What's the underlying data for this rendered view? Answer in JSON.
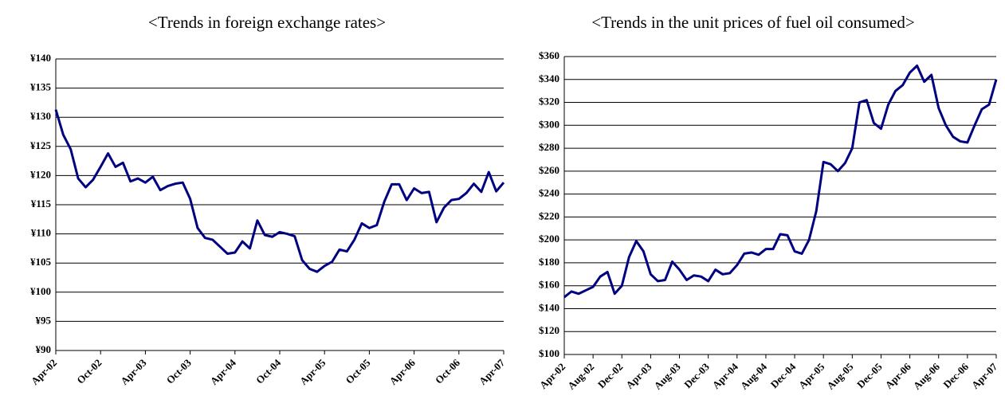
{
  "chart_data": [
    {
      "type": "line",
      "title": "<Trends in foreign exchange rates>",
      "color": "#000080",
      "grid": true,
      "categories": [
        "Apr-02",
        null,
        null,
        null,
        null,
        null,
        "Oct-02",
        null,
        null,
        null,
        null,
        null,
        "Apr-03",
        null,
        null,
        null,
        null,
        null,
        "Oct-03",
        null,
        null,
        null,
        null,
        null,
        "Apr-04",
        null,
        null,
        null,
        null,
        null,
        "Oct-04",
        null,
        null,
        null,
        null,
        null,
        "Apr-05",
        null,
        null,
        null,
        null,
        null,
        "Oct-05",
        null,
        null,
        null,
        null,
        null,
        "Apr-06",
        null,
        null,
        null,
        null,
        null,
        "Oct-06",
        null,
        null,
        null,
        null,
        null,
        "Apr-07"
      ],
      "values": [
        131.3,
        127,
        124.5,
        119.5,
        118,
        119.3,
        121.5,
        123.8,
        121.5,
        122.2,
        119,
        119.5,
        118.8,
        119.8,
        117.5,
        118.2,
        118.6,
        118.8,
        116,
        111,
        109.3,
        109,
        107.8,
        106.6,
        106.8,
        108.7,
        107.5,
        112.3,
        109.8,
        109.5,
        110.3,
        110,
        109.6,
        105.5,
        104,
        103.5,
        104.5,
        105.2,
        107.3,
        107,
        109,
        111.8,
        111,
        111.5,
        115.5,
        118.5,
        118.5,
        115.8,
        117.8,
        117,
        117.2,
        112,
        114.5,
        115.8,
        116,
        117,
        118.6,
        117.2,
        120.6,
        117.3,
        118.8
      ],
      "ylim": [
        90,
        140
      ],
      "yticks": [
        {
          "value": 90,
          "label": "¥90"
        },
        {
          "value": 95,
          "label": "¥95"
        },
        {
          "value": 100,
          "label": "¥100"
        },
        {
          "value": 105,
          "label": "¥105"
        },
        {
          "value": 110,
          "label": "¥110"
        },
        {
          "value": 115,
          "label": "¥115"
        },
        {
          "value": 120,
          "label": "¥120"
        },
        {
          "value": 125,
          "label": "¥125"
        },
        {
          "value": 130,
          "label": "¥130"
        },
        {
          "value": 135,
          "label": "¥135"
        },
        {
          "value": 140,
          "label": "¥140"
        }
      ]
    },
    {
      "type": "line",
      "title": "<Trends in the unit prices of fuel oil consumed>",
      "color": "#000080",
      "grid": true,
      "categories": [
        "Apr-02",
        null,
        null,
        null,
        "Aug-02",
        null,
        null,
        null,
        "Dec-02",
        null,
        null,
        null,
        "Apr-03",
        null,
        null,
        null,
        "Aug-03",
        null,
        null,
        null,
        "Dec-03",
        null,
        null,
        null,
        "Apr-04",
        null,
        null,
        null,
        "Aug-04",
        null,
        null,
        null,
        "Dec-04",
        null,
        null,
        null,
        "Apr-05",
        null,
        null,
        null,
        "Aug-05",
        null,
        null,
        null,
        "Dec-05",
        null,
        null,
        null,
        "Apr-06",
        null,
        null,
        null,
        "Aug-06",
        null,
        null,
        null,
        "Dec-06",
        null,
        null,
        null,
        "Apr-07"
      ],
      "values": [
        150,
        155,
        153,
        156,
        159,
        168,
        172,
        153,
        160,
        185,
        199,
        190,
        170,
        164,
        165,
        181,
        174,
        165,
        169,
        168,
        164,
        174,
        170,
        171,
        178,
        188,
        189,
        187,
        192,
        192,
        205,
        204,
        190,
        188,
        200,
        225,
        268,
        266,
        260,
        267,
        280,
        320,
        322,
        302,
        297,
        318,
        330,
        335,
        346,
        352,
        338,
        344,
        315,
        300,
        290,
        286,
        285,
        300,
        314,
        318,
        340
      ],
      "ylim": [
        100,
        360
      ],
      "yticks": [
        {
          "value": 100,
          "label": "$100"
        },
        {
          "value": 120,
          "label": "$120"
        },
        {
          "value": 140,
          "label": "$140"
        },
        {
          "value": 160,
          "label": "$160"
        },
        {
          "value": 180,
          "label": "$180"
        },
        {
          "value": 200,
          "label": "$200"
        },
        {
          "value": 220,
          "label": "$220"
        },
        {
          "value": 240,
          "label": "$240"
        },
        {
          "value": 260,
          "label": "$260"
        },
        {
          "value": 280,
          "label": "$280"
        },
        {
          "value": 300,
          "label": "$300"
        },
        {
          "value": 320,
          "label": "$320"
        },
        {
          "value": 340,
          "label": "$340"
        },
        {
          "value": 360,
          "label": "$360"
        }
      ]
    }
  ]
}
